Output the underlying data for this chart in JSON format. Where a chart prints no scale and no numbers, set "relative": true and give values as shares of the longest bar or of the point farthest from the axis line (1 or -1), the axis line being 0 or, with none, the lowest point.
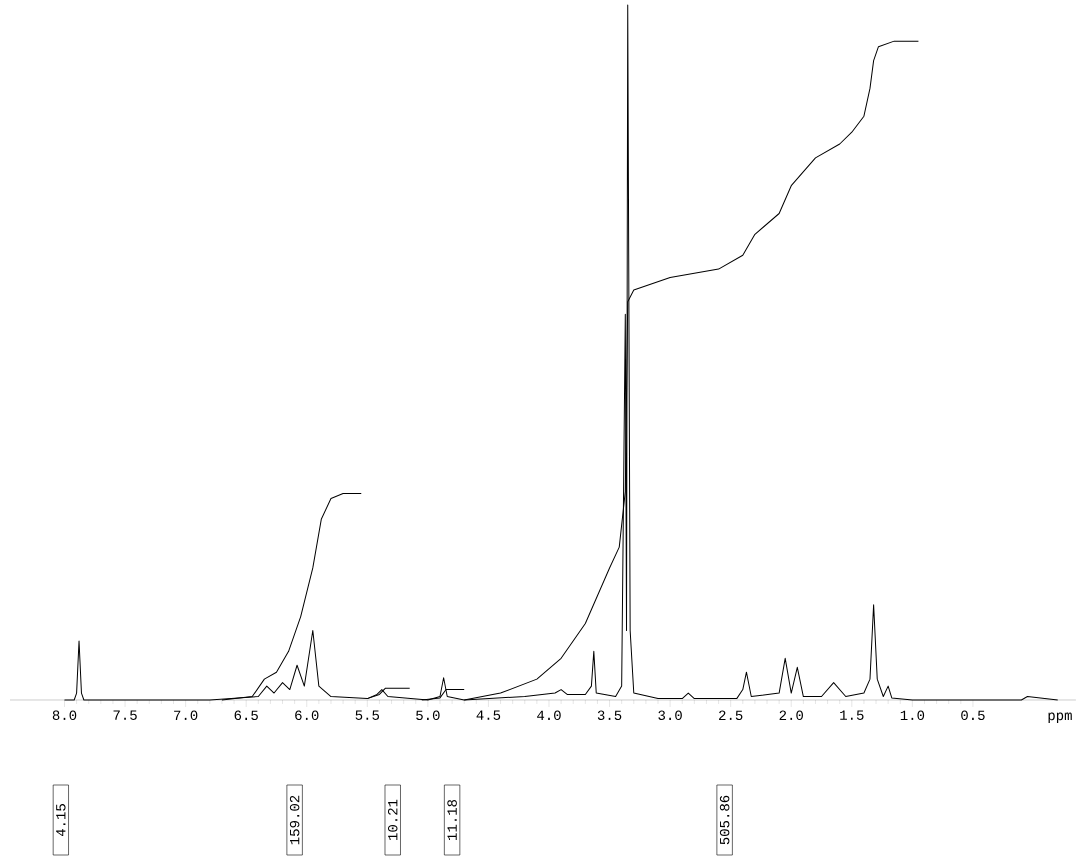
{
  "chart_data": {
    "type": "line",
    "relative": true,
    "xlabel": "ppm",
    "xlim": [
      8.45,
      -0.35
    ],
    "xticks": [
      {
        "value": 8,
        "label": "8.0"
      },
      {
        "value": 7.5,
        "label": "7.5"
      },
      {
        "value": 7,
        "label": "7.0"
      },
      {
        "value": 6.5,
        "label": "6.5"
      },
      {
        "value": 6,
        "label": "6.0"
      },
      {
        "value": 5.5,
        "label": "5.5"
      },
      {
        "value": 5,
        "label": "5.0"
      },
      {
        "value": 4.5,
        "label": "4.5"
      },
      {
        "value": 4,
        "label": "4.0"
      },
      {
        "value": 3.5,
        "label": "3.5"
      },
      {
        "value": 3,
        "label": "3.0"
      },
      {
        "value": 2.5,
        "label": "2.5"
      },
      {
        "value": 2,
        "label": "2.0"
      },
      {
        "value": 1.5,
        "label": "1.5"
      },
      {
        "value": 1,
        "label": "1.0"
      },
      {
        "value": 0.5,
        "label": "0.5"
      }
    ],
    "series": [
      {
        "color": "#000000",
        "x": [
          8.0,
          7.92,
          7.9,
          7.88,
          7.86,
          7.84,
          6.8,
          6.4,
          6.33,
          6.27,
          6.2,
          6.14,
          6.08,
          6.02,
          5.95,
          5.9,
          5.8,
          5.5,
          5.42,
          5.38,
          5.33,
          5.0,
          4.9,
          4.87,
          4.84,
          4.7,
          4.2,
          3.95,
          3.9,
          3.85,
          3.7,
          3.65,
          3.63,
          3.61,
          3.45,
          3.4,
          3.37,
          3.36,
          3.35,
          3.33,
          3.3,
          3.1,
          2.9,
          2.85,
          2.8,
          2.45,
          2.4,
          2.37,
          2.33,
          2.1,
          2.05,
          2.0,
          1.95,
          1.9,
          1.75,
          1.65,
          1.55,
          1.4,
          1.35,
          1.32,
          1.29,
          1.24,
          1.2,
          1.17,
          1.0,
          0.1,
          0.05,
          -0.2
        ],
        "values": [
          0,
          0,
          0.01,
          0.085,
          0.01,
          0,
          0,
          0.005,
          0.02,
          0.01,
          0.025,
          0.015,
          0.05,
          0.02,
          0.1,
          0.02,
          0.005,
          0.002,
          0.008,
          0.015,
          0.005,
          0,
          0.005,
          0.032,
          0.005,
          0,
          0.005,
          0.01,
          0.015,
          0.008,
          0.008,
          0.02,
          0.07,
          0.01,
          0.005,
          0.02,
          0.555,
          0.1,
          1.0,
          0.1,
          0.01,
          0.002,
          0.002,
          0.01,
          0.002,
          0.002,
          0.015,
          0.04,
          0.005,
          0.01,
          0.06,
          0.01,
          0.047,
          0.005,
          0.005,
          0.025,
          0.005,
          0.01,
          0.03,
          0.137,
          0.03,
          0.005,
          0.02,
          0.003,
          0,
          0,
          0.005,
          0
        ]
      },
      {
        "color": "#000000",
        "x": [
          6.7,
          6.45,
          6.35,
          6.25,
          6.15,
          6.05,
          5.95,
          5.88,
          5.8,
          5.7,
          5.55
        ],
        "values": [
          0,
          0.005,
          0.03,
          0.04,
          0.07,
          0.12,
          0.19,
          0.26,
          0.29,
          0.297,
          0.297
        ]
      },
      {
        "color": "#000000",
        "x": [
          5.5,
          5.4,
          5.35,
          5.15
        ],
        "values": [
          0.002,
          0.008,
          0.017,
          0.017
        ]
      },
      {
        "color": "#000000",
        "x": [
          5.05,
          4.9,
          4.85,
          4.7
        ],
        "values": [
          0,
          0.003,
          0.015,
          0.015
        ]
      },
      {
        "color": "#000000",
        "x": [
          4.7,
          4.4,
          4.1,
          3.9,
          3.7,
          3.6,
          3.5,
          3.42,
          3.37,
          3.35,
          3.3,
          3.0,
          2.6,
          2.4,
          2.3,
          2.1,
          2.0,
          1.8,
          1.6,
          1.5,
          1.4,
          1.35,
          1.32,
          1.28,
          1.15,
          0.95
        ],
        "values": [
          0,
          0.01,
          0.03,
          0.06,
          0.11,
          0.15,
          0.19,
          0.22,
          0.3,
          0.573,
          0.59,
          0.608,
          0.62,
          0.64,
          0.67,
          0.7,
          0.74,
          0.78,
          0.8,
          0.817,
          0.84,
          0.88,
          0.92,
          0.94,
          0.948,
          0.948
        ]
      }
    ],
    "annotations": [
      "4.15",
      "159.02",
      "10.21",
      "11.18",
      "505.86"
    ]
  }
}
